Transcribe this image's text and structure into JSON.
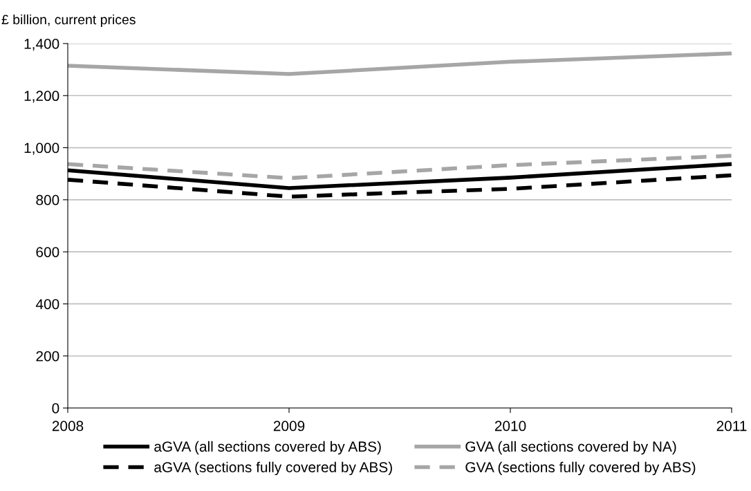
{
  "chart_data": {
    "type": "line",
    "ylabel": "£ billion, current prices",
    "x": [
      2008,
      2009,
      2010,
      2011
    ],
    "xlim": [
      2008,
      2011
    ],
    "xticks": [
      2008,
      2009,
      2010,
      2011
    ],
    "ylim": [
      0,
      1400
    ],
    "yticks": [
      {
        "value": 0,
        "label": "0"
      },
      {
        "value": 200,
        "label": "200"
      },
      {
        "value": 400,
        "label": "400"
      },
      {
        "value": 600,
        "label": "600"
      },
      {
        "value": 800,
        "label": "800"
      },
      {
        "value": 1000,
        "label": "1,000"
      },
      {
        "value": 1200,
        "label": "1,200"
      },
      {
        "value": 1400,
        "label": "1,400"
      }
    ],
    "grid": "y",
    "legend": "bottom",
    "series": [
      {
        "name": "aGVA (all sections covered by ABS)",
        "color": "#000000",
        "line_style": "solid",
        "values": [
          913,
          845,
          885,
          937
        ]
      },
      {
        "name": "aGVA (sections fully covered by ABS)",
        "color": "#000000",
        "line_style": "dashed",
        "values": [
          877,
          812,
          842,
          894
        ]
      },
      {
        "name": "GVA (all sections covered by NA)",
        "color": "#a6a6a6",
        "line_style": "solid",
        "values": [
          1315,
          1283,
          1330,
          1362
        ]
      },
      {
        "name": "GVA (sections fully covered by ABS)",
        "color": "#a6a6a6",
        "line_style": "dashed",
        "values": [
          937,
          883,
          933,
          969
        ]
      }
    ]
  }
}
